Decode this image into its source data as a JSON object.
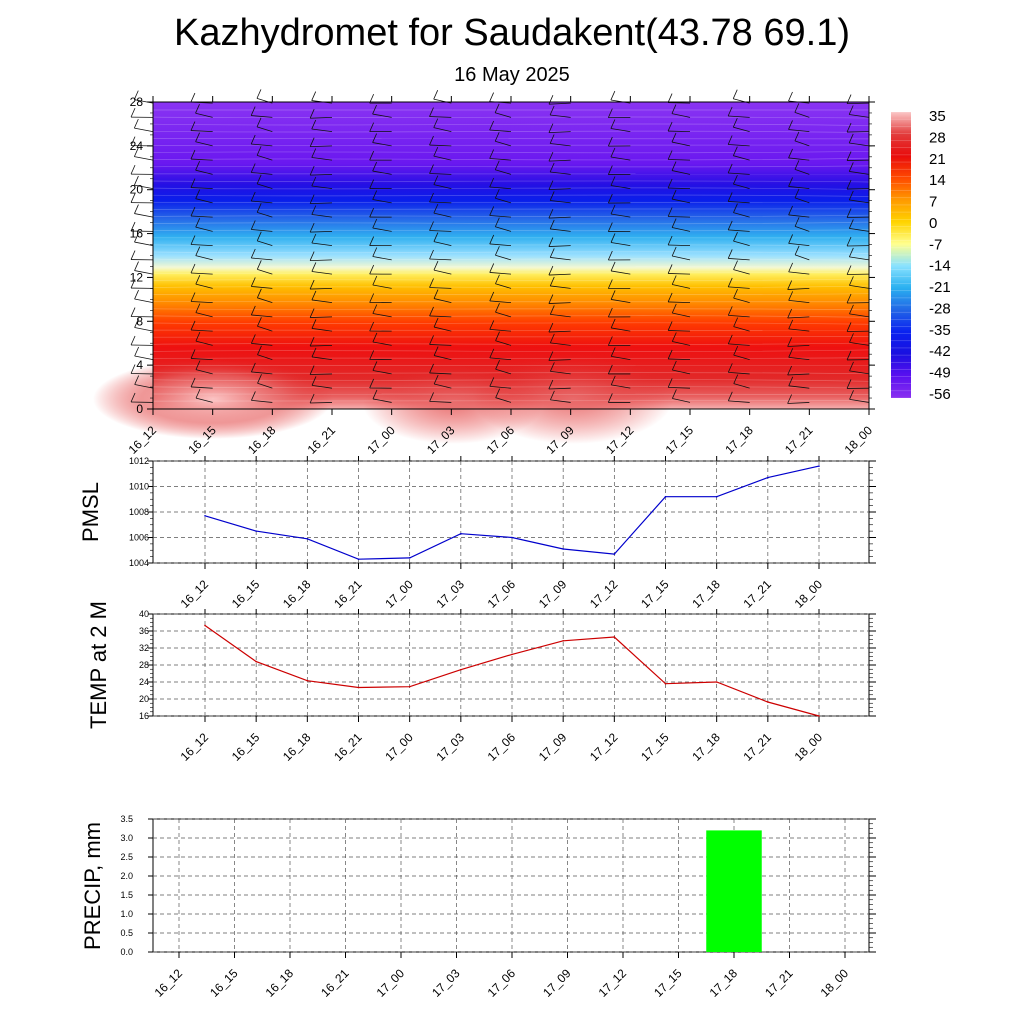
{
  "title": "Kazhydromet for Saudakent(43.78 69.1)",
  "subtitle": "16 May 2025",
  "chart_data": [
    {
      "type": "heatmap",
      "name": "cross-section",
      "x": [
        "16_12",
        "16_15",
        "16_18",
        "16_21",
        "17_00",
        "17_03",
        "17_06",
        "17_09",
        "17_12",
        "17_15",
        "17_18",
        "17_21",
        "18_00"
      ],
      "ylim": [
        0,
        28
      ],
      "yticks": [
        0,
        4,
        8,
        12,
        16,
        20,
        24,
        28
      ],
      "colorbar": {
        "labels": [
          "35",
          "28",
          "21",
          "14",
          "7",
          "0",
          "-7",
          "-14",
          "-21",
          "-28",
          "-35",
          "-42",
          "-49",
          "-56"
        ],
        "stops": [
          "#fbc8c8",
          "#e23c3c",
          "#e80c0c",
          "#ff4a00",
          "#ff9a00",
          "#ffd400",
          "#ffff90",
          "#8ae2ff",
          "#2ab0f0",
          "#2266e6",
          "#0a22f0",
          "#1a10e0",
          "#5a10f0",
          "#8a30f0"
        ]
      }
    },
    {
      "type": "line",
      "name": "pmsl",
      "ylabel": "PMSL",
      "categories": [
        "16_12",
        "16_15",
        "16_18",
        "16_21",
        "17_00",
        "17_03",
        "17_06",
        "17_09",
        "17_12",
        "17_15",
        "17_18",
        "17_21",
        "18_00"
      ],
      "values": [
        1007.7,
        1006.5,
        1005.9,
        1004.3,
        1004.4,
        1006.3,
        1006.0,
        1005.1,
        1004.7,
        1009.2,
        1009.2,
        1010.7,
        1011.6
      ],
      "ylim": [
        1004,
        1012
      ],
      "yticks": [
        1004,
        1006,
        1008,
        1010,
        1012
      ],
      "color": "#0000cc"
    },
    {
      "type": "line",
      "name": "temp",
      "ylabel": "TEMP at 2 M",
      "categories": [
        "16_12",
        "16_15",
        "16_18",
        "16_21",
        "17_00",
        "17_03",
        "17_06",
        "17_09",
        "17_12",
        "17_15",
        "17_18",
        "17_21",
        "18_00"
      ],
      "values": [
        37.3,
        28.8,
        24.3,
        22.7,
        22.9,
        26.9,
        30.5,
        33.7,
        34.6,
        23.6,
        24.0,
        19.3,
        16.0
      ],
      "ylim": [
        16,
        40
      ],
      "yticks": [
        16,
        20,
        24,
        28,
        32,
        36,
        40
      ],
      "color": "#cc0000"
    },
    {
      "type": "bar",
      "name": "precip",
      "ylabel": "PRECIP, mm",
      "categories": [
        "16_12",
        "16_15",
        "16_18",
        "16_21",
        "17_00",
        "17_03",
        "17_06",
        "17_09",
        "17_12",
        "17_15",
        "17_18",
        "17_21",
        "18_00"
      ],
      "values": [
        0,
        0,
        0,
        0,
        0,
        0,
        0,
        0,
        0,
        0,
        3.2,
        0,
        0
      ],
      "ylim": [
        0,
        3.5
      ],
      "yticks": [
        "0.0",
        "0.5",
        "1.0",
        "1.5",
        "2.0",
        "2.5",
        "3.0",
        "3.5"
      ],
      "color": "#00ff00"
    }
  ]
}
